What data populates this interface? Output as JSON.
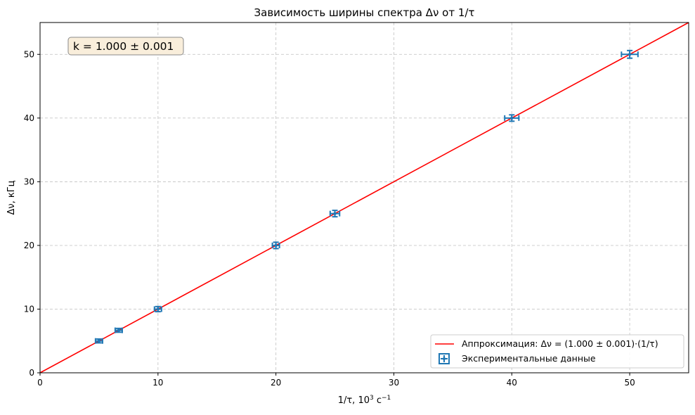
{
  "chart_data": {
    "type": "scatter",
    "title": "Зависимость ширины спектра Δν от 1/τ",
    "xlabel": "1/τ, 10",
    "xlabel_sup1": "3",
    "xlabel_mid": " с",
    "xlabel_sup2": "−1",
    "ylabel": "Δν, кГц",
    "xlim": [
      0,
      55
    ],
    "ylim": [
      0,
      55
    ],
    "xticks": [
      0,
      10,
      20,
      30,
      40,
      50
    ],
    "yticks": [
      0,
      10,
      20,
      30,
      40,
      50
    ],
    "grid": true,
    "annotation": "k = 1.000 ± 0.001",
    "legend": {
      "placement": "bottom-right",
      "fit_label": "Аппроксимация: Δν = (1.000 ± 0.001)·(1/τ)",
      "data_label": "Экспериментальные данные"
    },
    "fit": {
      "slope": 1.0,
      "intercept": 0.0,
      "color": "#ff0000"
    },
    "series": [
      {
        "name": "Экспериментальные данные",
        "color": "#1f77b4",
        "x": [
          5.0,
          6.67,
          10.0,
          20.0,
          25.0,
          40.0,
          50.0
        ],
        "y": [
          5.0,
          6.67,
          10.0,
          20.0,
          25.0,
          40.0,
          50.0
        ],
        "xerr": [
          0.3,
          0.3,
          0.3,
          0.3,
          0.4,
          0.6,
          0.7
        ],
        "yerr": [
          0.3,
          0.3,
          0.4,
          0.5,
          0.5,
          0.5,
          0.6
        ]
      }
    ]
  }
}
